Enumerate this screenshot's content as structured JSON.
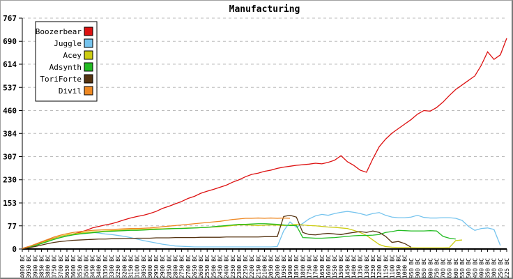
{
  "window": {
    "title": "Manufacturing"
  },
  "colors": {
    "background": "#ffffff",
    "axis": "#000000",
    "grid": "#bbbbbb",
    "text": "#000000",
    "legend_border": "#000000",
    "frame_border": "#777777"
  },
  "chart_data": {
    "type": "line",
    "title": "Manufacturing",
    "xlabel": "",
    "ylabel": "",
    "ylim": [
      0,
      767
    ],
    "y_ticks": [
      0,
      77,
      153,
      230,
      307,
      384,
      460,
      537,
      614,
      690,
      767
    ],
    "grid": "horizontal-dashed",
    "legend_position": "top-left",
    "x_labels": [
      "4000 BC",
      "3950 BC",
      "3900 BC",
      "3850 BC",
      "3800 BC",
      "3750 BC",
      "3700 BC",
      "3650 BC",
      "3600 BC",
      "3550 BC",
      "3500 BC",
      "3450 BC",
      "3400 BC",
      "3350 BC",
      "3300 BC",
      "3250 BC",
      "3200 BC",
      "3150 BC",
      "3100 BC",
      "3050 BC",
      "3000 BC",
      "2950 BC",
      "2900 BC",
      "2850 BC",
      "2800 BC",
      "2750 BC",
      "2700 BC",
      "2650 BC",
      "2600 BC",
      "2550 BC",
      "2500 BC",
      "2450 BC",
      "2400 BC",
      "2350 BC",
      "2300 BC",
      "2250 BC",
      "2200 BC",
      "2150 BC",
      "2100 BC",
      "2050 BC",
      "2000 BC",
      "1950 BC",
      "1900 BC",
      "1850 BC",
      "1800 BC",
      "1750 BC",
      "1700 BC",
      "1650 BC",
      "1600 BC",
      "1550 BC",
      "1500 BC",
      "1450 BC",
      "1400 BC",
      "1350 BC",
      "1300 BC",
      "1250 BC",
      "1200 BC",
      "1150 BC",
      "1100 BC",
      "1050 BC",
      "1000 BC",
      "950 BC",
      "900 BC",
      "850 BC",
      "800 BC",
      "750 BC",
      "700 BC",
      "650 BC",
      "600 BC",
      "550 BC",
      "500 BC",
      "450 BC",
      "400 BC",
      "350 BC",
      "300 BC",
      "250 BC",
      "225 BC"
    ],
    "series": [
      {
        "name": "Boozerbear",
        "color": "#dd1111",
        "values": [
          2,
          8,
          15,
          22,
          30,
          36,
          42,
          46,
          50,
          55,
          62,
          70,
          75,
          80,
          84,
          90,
          97,
          103,
          108,
          112,
          118,
          125,
          135,
          142,
          150,
          158,
          168,
          175,
          185,
          192,
          198,
          205,
          212,
          222,
          230,
          240,
          248,
          252,
          258,
          262,
          268,
          272,
          275,
          278,
          280,
          282,
          285,
          283,
          288,
          295,
          310,
          290,
          278,
          262,
          255,
          300,
          340,
          365,
          385,
          400,
          415,
          430,
          448,
          460,
          458,
          470,
          488,
          510,
          530,
          545,
          560,
          575,
          610,
          655,
          630,
          645,
          700
        ]
      },
      {
        "name": "Juggle",
        "color": "#76c4ee",
        "values": [
          1,
          5,
          12,
          20,
          28,
          35,
          40,
          44,
          48,
          52,
          54,
          55,
          53,
          50,
          48,
          45,
          42,
          38,
          33,
          28,
          24,
          20,
          16,
          13,
          10,
          9,
          8,
          7,
          7,
          7,
          7,
          7,
          7,
          7,
          7,
          7,
          7,
          7,
          7,
          7,
          8,
          60,
          90,
          72,
          85,
          100,
          110,
          115,
          112,
          118,
          122,
          125,
          122,
          118,
          112,
          118,
          121,
          112,
          106,
          104,
          104,
          106,
          112,
          105,
          103,
          103,
          104,
          104,
          102,
          95,
          75,
          62,
          68,
          70,
          65,
          12,
          null
        ]
      },
      {
        "name": "Acey",
        "color": "#cccc11",
        "values": [
          1,
          6,
          12,
          20,
          28,
          35,
          42,
          47,
          50,
          53,
          55,
          57,
          58,
          60,
          61,
          62,
          63,
          64,
          64,
          65,
          66,
          67,
          67,
          68,
          68,
          69,
          70,
          70,
          71,
          72,
          73,
          74,
          76,
          78,
          80,
          80,
          79,
          78,
          79,
          80,
          79,
          78,
          80,
          82,
          80,
          78,
          77,
          75,
          73,
          72,
          70,
          68,
          62,
          55,
          45,
          30,
          15,
          8,
          6,
          5,
          5,
          5,
          4,
          4,
          4,
          4,
          4,
          5,
          28,
          30,
          null,
          null,
          null,
          null,
          null,
          null,
          null
        ]
      },
      {
        "name": "Adsynth",
        "color": "#22bb22",
        "values": [
          1,
          5,
          11,
          18,
          25,
          32,
          38,
          43,
          47,
          50,
          52,
          54,
          56,
          58,
          59,
          60,
          61,
          62,
          62,
          63,
          64,
          65,
          66,
          67,
          68,
          68,
          69,
          70,
          71,
          72,
          74,
          76,
          78,
          80,
          82,
          82,
          83,
          84,
          84,
          83,
          82,
          80,
          78,
          78,
          38,
          37,
          36,
          36,
          37,
          38,
          40,
          42,
          44,
          45,
          45,
          46,
          48,
          55,
          58,
          62,
          61,
          60,
          60,
          60,
          61,
          60,
          42,
          36,
          33,
          null,
          null,
          null,
          null,
          null,
          null,
          null,
          null
        ]
      },
      {
        "name": "ToriForte",
        "color": "#553311",
        "values": [
          1,
          4,
          8,
          13,
          18,
          22,
          25,
          27,
          29,
          30,
          31,
          32,
          33,
          33,
          34,
          34,
          35,
          35,
          36,
          36,
          36,
          37,
          37,
          37,
          38,
          38,
          38,
          38,
          39,
          39,
          39,
          39,
          40,
          40,
          40,
          40,
          40,
          40,
          41,
          41,
          41,
          108,
          112,
          106,
          55,
          48,
          47,
          50,
          52,
          50,
          48,
          52,
          55,
          58,
          55,
          60,
          55,
          42,
          22,
          25,
          18,
          6,
          null,
          null,
          null,
          null,
          null,
          null,
          null,
          null,
          null,
          null,
          null,
          null,
          null,
          null,
          null
        ]
      },
      {
        "name": "Divil",
        "color": "#ee8822",
        "values": [
          2,
          8,
          16,
          24,
          32,
          40,
          46,
          51,
          55,
          58,
          60,
          62,
          63,
          64,
          65,
          66,
          67,
          68,
          68,
          69,
          70,
          72,
          74,
          76,
          78,
          80,
          82,
          84,
          86,
          88,
          90,
          92,
          95,
          98,
          100,
          102,
          102,
          103,
          102,
          103,
          102,
          103,
          102,
          null,
          null,
          null,
          null,
          null,
          null,
          null,
          null,
          null,
          null,
          null,
          null,
          null,
          null,
          null,
          null,
          null,
          null,
          null,
          null,
          null,
          null,
          null,
          null,
          null,
          null,
          null,
          null,
          null,
          null,
          null,
          null,
          null,
          null
        ]
      }
    ]
  }
}
